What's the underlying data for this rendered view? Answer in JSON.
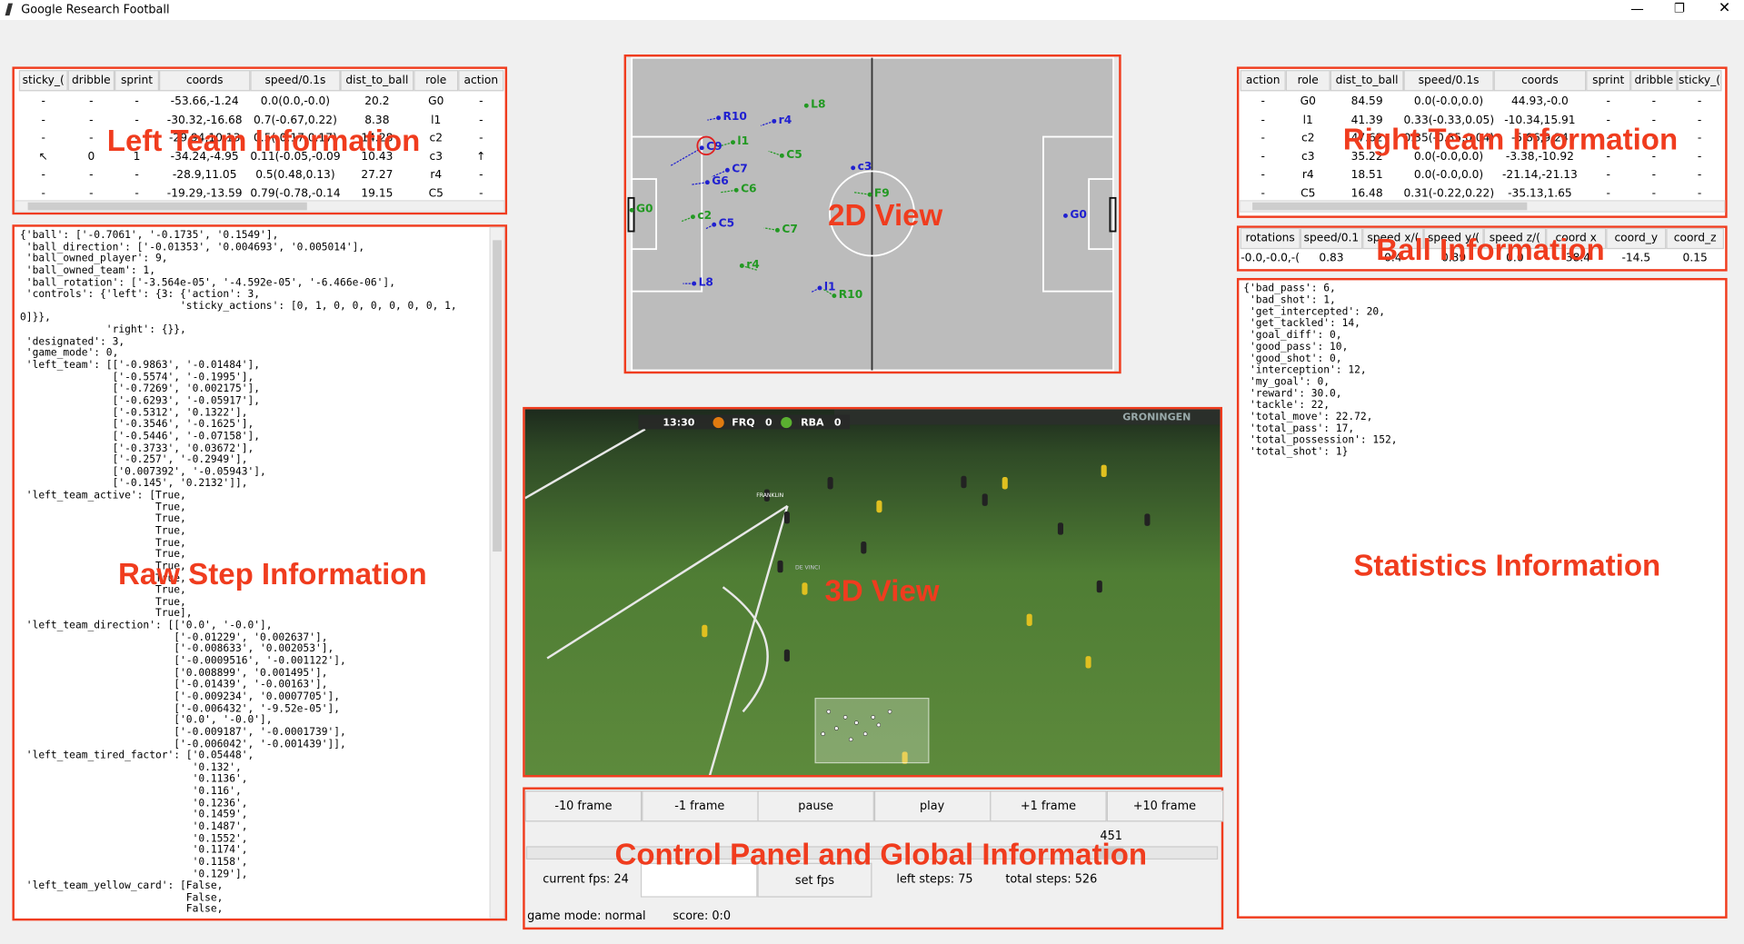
{
  "window": {
    "title": "Google Research Football"
  },
  "left_team": {
    "headers": [
      "sticky_(",
      "dribble",
      "sprint",
      "coords",
      "speed/0.1s",
      "dist_to_ball",
      "role",
      "action"
    ],
    "rows": [
      [
        "-",
        "-",
        "-",
        "-53.66,-1.24",
        "0.0(0.0,-0.0)",
        "20.2",
        "G0",
        "-"
      ],
      [
        "-",
        "-",
        "-",
        "-30.32,-16.68",
        "0.7(-0.67,0.22)",
        "8.38",
        "l1",
        "-"
      ],
      [
        "-",
        "-",
        "-",
        "-29.94,10.13",
        "0.5(-0.17,0.17)",
        "14.28",
        "c2",
        "-"
      ],
      [
        "↖",
        "0",
        "1",
        "-34.24,-4.95",
        "0.11(-0.05,-0.09)",
        "10.43",
        "c3",
        "↑"
      ],
      [
        "-",
        "-",
        "-",
        "-28.9,11.05",
        "0.5(0.48,0.13)",
        "27.27",
        "r4",
        "-"
      ],
      [
        "-",
        "-",
        "-",
        "-19.29,-13.59",
        "0.79(-0.78,-0.14)",
        "19.15",
        "C5",
        "-"
      ]
    ]
  },
  "right_team": {
    "headers": [
      "action",
      "role",
      "dist_to_ball",
      "speed/0.1s",
      "coords",
      "sprint",
      "dribble",
      "sticky_("
    ],
    "rows": [
      [
        "-",
        "G0",
        "84.59",
        "0.0(-0.0,0.0)",
        "44.93,-0.0",
        "-",
        "-",
        "-"
      ],
      [
        "-",
        "l1",
        "41.39",
        "0.33(-0.33,0.05)",
        "-10.34,15.91",
        "-",
        "-",
        "-"
      ],
      [
        "-",
        "c2",
        "47.62",
        "0.35(-0.35,0.04)",
        "-5.86,9.24",
        "-",
        "-",
        "-"
      ],
      [
        "-",
        "c3",
        "35.22",
        "0.0(-0.0,0.0)",
        "-3.38,-10.92",
        "-",
        "-",
        "-"
      ],
      [
        "-",
        "r4",
        "18.51",
        "0.0(-0.0,0.0)",
        "-21.14,-21.13",
        "-",
        "-",
        "-"
      ],
      [
        "-",
        "C5",
        "16.48",
        "0.31(-0.22,0.22)",
        "-35.13,1.65",
        "-",
        "-",
        "-"
      ]
    ]
  },
  "ball": {
    "headers": [
      "rotations",
      "speed/0.1",
      "speed x/(",
      "speed y/(",
      "speed z/(",
      "coord x",
      "coord_y",
      "coord_z"
    ],
    "values": [
      "-0.0,-0.0,-(",
      "0.83",
      "0.4",
      "0.39",
      "0.0",
      "-38.4",
      "-14.5",
      "0.15"
    ]
  },
  "raw_step": {
    "lines": [
      "{'ball': ['-0.7061', '-0.1735', '0.1549'],",
      " 'ball_direction': ['-0.01353', '0.004693', '0.005014'],",
      " 'ball_owned_player': 9,",
      " 'ball_owned_team': 1,",
      " 'ball_rotation': ['-3.564e-05', '-4.592e-05', '-6.466e-06'],",
      " 'controls': {'left': {3: {'action': 3,",
      "                          'sticky_actions': [0, 1, 0, 0, 0, 0, 0, 0, 1,",
      "0]}},",
      "              'right': {}},",
      " 'designated': 3,",
      " 'game_mode': 0,",
      " 'left_team': [['-0.9863', '-0.01484'],",
      "               ['-0.5574', '-0.1995'],",
      "               ['-0.7269', '0.002175'],",
      "               ['-0.6293', '-0.05917'],",
      "               ['-0.5312', '0.1322'],",
      "               ['-0.3546', '-0.1625'],",
      "               ['-0.5446', '-0.07158'],",
      "               ['-0.3733', '0.03672'],",
      "               ['-0.257', '-0.2949'],",
      "               ['0.007392', '-0.05943'],",
      "               ['-0.145', '0.2132']],",
      " 'left_team_active': [True,",
      "                      True,",
      "                      True,",
      "                      True,",
      "                      True,",
      "                      True,",
      "                      True,",
      "                      True,",
      "                      True,",
      "                      True,",
      "                      True],",
      " 'left_team_direction': [['0.0', '-0.0'],",
      "                         ['-0.01229', '0.002637'],",
      "                         ['-0.008633', '0.002053'],",
      "                         ['-0.0009516', '-0.001122'],",
      "                         ['0.008899', '0.001495'],",
      "                         ['-0.01439', '-0.00163'],",
      "                         ['-0.009234', '0.0007705'],",
      "                         ['-0.006432', '-9.52e-05'],",
      "                         ['0.0', '-0.0'],",
      "                         ['-0.009187', '-0.0001739'],",
      "                         ['-0.006042', '-0.001439']],",
      " 'left_team_tired_factor': ['0.05448',",
      "                            '0.132',",
      "                            '0.1136',",
      "                            '0.116',",
      "                            '0.1236',",
      "                            '0.1459',",
      "                            '0.1487',",
      "                            '0.1552',",
      "                            '0.1174',",
      "                            '0.1158',",
      "                            '0.129'],",
      " 'left_team_yellow_card': [False,",
      "                           False,",
      "                           False,"
    ]
  },
  "statistics": {
    "lines": [
      "{'bad_pass': 6,",
      " 'bad_shot': 1,",
      " 'get_intercepted': 20,",
      " 'get_tackled': 14,",
      " 'goal_diff': 0,",
      " 'good_pass': 10,",
      " 'good_shot': 0,",
      " 'interception': 12,",
      " 'my_goal': 0,",
      " 'reward': 30.0,",
      " 'tackle': 22,",
      " 'total_move': 22.72,",
      " 'total_pass': 17,",
      " 'total_possession': 152,",
      " 'total_shot': 1}"
    ]
  },
  "view_2d": {
    "players": [
      {
        "label": "R10",
        "color": "#2020d0"
      },
      {
        "label": "r4",
        "color": "#2020d0"
      },
      {
        "label": "L8",
        "color": "#229922"
      },
      {
        "label": "l1",
        "color": "#229922"
      },
      {
        "label": "C5",
        "color": "#229922"
      },
      {
        "label": "C9",
        "color": "#2020d0"
      },
      {
        "label": "C7",
        "color": "#2020d0"
      },
      {
        "label": "G6",
        "color": "#2020d0"
      },
      {
        "label": "C6",
        "color": "#229922"
      },
      {
        "label": "c3",
        "color": "#2020d0"
      },
      {
        "label": "F9",
        "color": "#229922"
      },
      {
        "label": "G0",
        "color": "#229922"
      },
      {
        "label": "c2",
        "color": "#229922"
      },
      {
        "label": "C5",
        "color": "#2020d0"
      },
      {
        "label": "C7",
        "color": "#229922"
      },
      {
        "label": "r4",
        "color": "#229922"
      },
      {
        "label": "L8",
        "color": "#2020d0"
      },
      {
        "label": "l1",
        "color": "#2020d0"
      },
      {
        "label": "R10",
        "color": "#229922"
      },
      {
        "label": "G0",
        "color": "#2020d0"
      }
    ]
  },
  "view_3d": {
    "clock": "13:30",
    "home": "FRQ",
    "home_score": 0,
    "away": "RBA",
    "away_score": 0,
    "board": "GRONINGEN",
    "player_name_1": "FRANKLIN",
    "player_name_2": "DE VINCI"
  },
  "controls": {
    "buttons": [
      "-10 frame",
      "-1 frame",
      "pause",
      "play",
      "+1 frame",
      "+10 frame"
    ],
    "slider_value": 451,
    "fps": "current fps: 24",
    "set_fps": "set fps",
    "left_steps": "left steps: 75",
    "total_steps": "total steps: 526",
    "game_mode": "game mode: normal",
    "score": "score: 0:0"
  },
  "annotations": {
    "left_team": "Left Team Information",
    "view_2d": "2D View",
    "right_team": "Right Team Information",
    "ball": "Ball Information",
    "raw_step": "Raw Step Information",
    "view_3d": "3D View",
    "statistics": "Statistics Information",
    "control": "Control Panel and Global Information"
  }
}
